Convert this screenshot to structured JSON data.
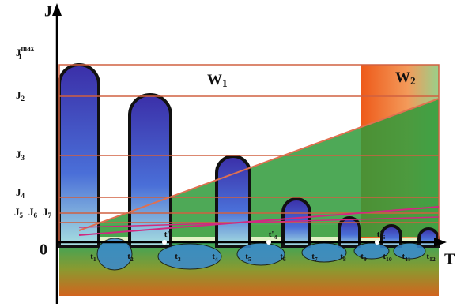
{
  "axes": {
    "y": "J",
    "x": "T",
    "origin": "0"
  },
  "y_labels": [
    {
      "sym": "J",
      "sub": "1",
      "sup": "max"
    },
    {
      "sym": "J",
      "sub": "2"
    },
    {
      "sym": "J",
      "sub": "3"
    },
    {
      "sym": "J",
      "sub": "4"
    },
    {
      "sym": "J",
      "sub": "5"
    },
    {
      "sym": "J",
      "sub": "6"
    },
    {
      "sym": "J",
      "sub": "7"
    }
  ],
  "regions": [
    {
      "sym": "W",
      "sub": "1"
    },
    {
      "sym": "W",
      "sub": "2"
    }
  ],
  "t_labels": [
    {
      "sym": "t",
      "sub": "1"
    },
    {
      "sym": "t",
      "sub": "2"
    },
    {
      "sym": "t",
      "sub": "3"
    },
    {
      "sym": "t",
      "sub": "4"
    },
    {
      "sym": "t",
      "sub": "5"
    },
    {
      "sym": "t",
      "sub": "6"
    },
    {
      "sym": "t",
      "sub": "7"
    },
    {
      "sym": "t",
      "sub": "8"
    },
    {
      "sym": "t",
      "sub": "9"
    },
    {
      "sym": "t",
      "sub": "10"
    },
    {
      "sym": "t",
      "sub": "11"
    },
    {
      "sym": "t",
      "sub": "12"
    }
  ],
  "t_prime_labels": [
    {
      "sym": "t'",
      "sub": "2"
    },
    {
      "sym": "t'",
      "sub": "4"
    },
    {
      "sym": "t'",
      "sub": "6"
    }
  ]
}
